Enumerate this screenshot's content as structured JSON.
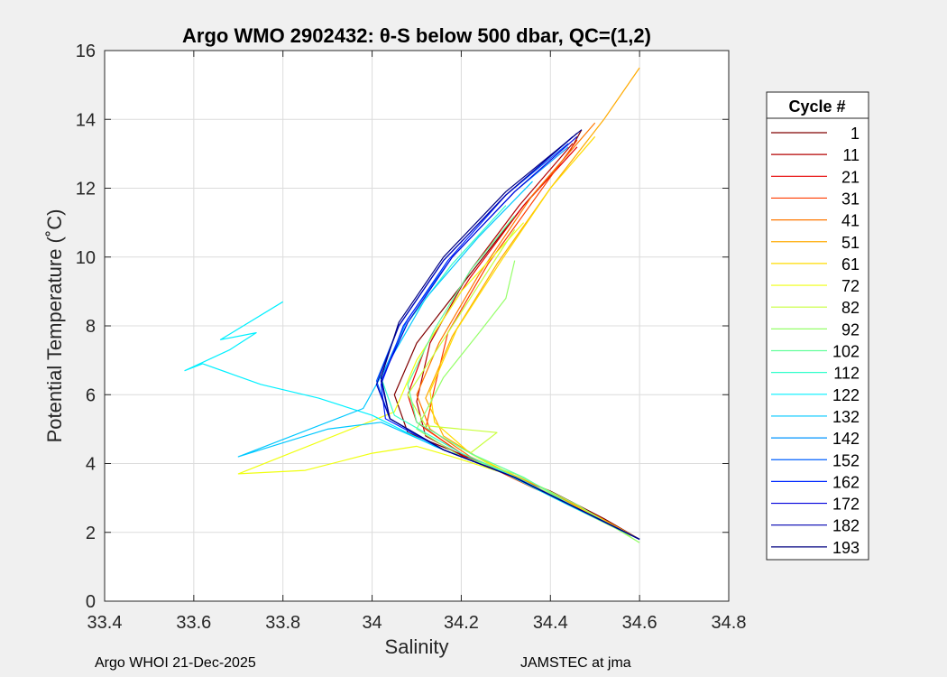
{
  "chart_data": {
    "type": "line",
    "title": "Argo WMO 2902432: θ-S below 500 dbar,  QC=(1,2)",
    "xlabel": "Salinity",
    "ylabel": "Potential Temperature (˚C)",
    "xlim": [
      33.4,
      34.8
    ],
    "ylim": [
      0,
      16
    ],
    "xticks": [
      33.4,
      33.6,
      33.8,
      34,
      34.2,
      34.4,
      34.6,
      34.8
    ],
    "xtick_labels": [
      "33.4",
      "33.6",
      "33.8",
      "34",
      "34.2",
      "34.4",
      "34.6",
      "34.8"
    ],
    "yticks": [
      0,
      2,
      4,
      6,
      8,
      10,
      12,
      14,
      16
    ],
    "ytick_labels": [
      "0",
      "2",
      "4",
      "6",
      "8",
      "10",
      "12",
      "14",
      "16"
    ],
    "grid": true,
    "legend": {
      "title": "Cycle #",
      "placement": "outside-right",
      "entries": [
        "1",
        "11",
        "21",
        "31",
        "41",
        "51",
        "61",
        "72",
        "82",
        "92",
        "102",
        "112",
        "122",
        "132",
        "142",
        "152",
        "162",
        "172",
        "182",
        "193"
      ],
      "colors": [
        "#800000",
        "#b40000",
        "#e60000",
        "#ff3c00",
        "#ff7800",
        "#ffaa00",
        "#ffdc00",
        "#f0ff10",
        "#c8ff3c",
        "#96ff6a",
        "#64ff9c",
        "#32ffcc",
        "#00f0ff",
        "#00c8ff",
        "#0096ff",
        "#0060ff",
        "#0028ff",
        "#0000dc",
        "#0000b0",
        "#000080"
      ]
    },
    "series": [
      {
        "name": "1",
        "x": [
          34.6,
          34.52,
          34.4,
          34.25,
          34.08,
          34.05,
          34.1,
          34.22,
          34.34,
          34.44,
          34.47
        ],
        "y": [
          1.8,
          2.4,
          3.2,
          4.0,
          4.9,
          6.0,
          7.5,
          9.5,
          11.5,
          13.0,
          13.7
        ]
      },
      {
        "name": "11",
        "x": [
          34.6,
          34.5,
          34.38,
          34.22,
          34.12,
          34.1,
          34.13,
          34.22,
          34.33,
          34.45
        ],
        "y": [
          1.8,
          2.5,
          3.3,
          4.1,
          4.8,
          5.8,
          7.5,
          9.6,
          11.5,
          13.3
        ]
      },
      {
        "name": "21",
        "x": [
          34.6,
          34.5,
          34.38,
          34.22,
          34.1,
          34.08,
          34.12,
          34.22,
          34.34,
          34.46
        ],
        "y": [
          1.8,
          2.5,
          3.3,
          4.1,
          5.2,
          6.0,
          7.4,
          9.4,
          11.5,
          13.2
        ]
      },
      {
        "name": "31",
        "x": [
          34.6,
          34.5,
          34.36,
          34.2,
          34.12,
          34.14,
          34.17,
          34.26,
          34.36,
          34.46
        ],
        "y": [
          1.8,
          2.5,
          3.3,
          4.3,
          5.0,
          6.2,
          7.8,
          9.8,
          11.6,
          13.4
        ]
      },
      {
        "name": "41",
        "x": [
          34.6,
          34.5,
          34.37,
          34.22,
          34.13,
          34.1,
          34.15,
          34.24,
          34.36,
          34.5
        ],
        "y": [
          1.8,
          2.5,
          3.3,
          4.2,
          5.0,
          6.0,
          7.5,
          9.5,
          11.8,
          13.9
        ]
      },
      {
        "name": "51",
        "x": [
          34.6,
          34.5,
          34.38,
          34.26,
          34.16,
          34.12,
          34.18,
          34.28,
          34.4,
          34.52,
          34.6
        ],
        "y": [
          1.8,
          2.5,
          3.3,
          4.0,
          4.8,
          5.9,
          7.7,
          9.8,
          12.0,
          14.0,
          15.5
        ]
      },
      {
        "name": "61",
        "x": [
          34.6,
          34.48,
          34.34,
          34.22,
          34.14,
          34.13,
          34.19,
          34.29,
          34.4,
          34.5
        ],
        "y": [
          1.8,
          2.6,
          3.5,
          4.3,
          5.2,
          6.1,
          7.9,
          9.9,
          12.0,
          13.5
        ]
      },
      {
        "name": "72",
        "x": [
          34.58,
          34.44,
          34.3,
          34.18,
          34.1,
          34.0,
          33.85,
          33.7,
          34.05,
          34.1,
          34.2,
          34.34
        ],
        "y": [
          1.9,
          2.8,
          3.7,
          4.2,
          4.5,
          4.3,
          3.8,
          3.7,
          5.5,
          7.0,
          9.0,
          11.0
        ]
      },
      {
        "name": "82",
        "x": [
          34.58,
          34.44,
          34.3,
          34.22,
          34.28,
          34.12,
          34.08,
          34.16,
          34.24,
          34.32
        ],
        "y": [
          1.9,
          2.8,
          3.7,
          4.3,
          4.9,
          5.1,
          6.0,
          7.6,
          9.2,
          10.8
        ]
      },
      {
        "name": "92",
        "x": [
          34.6,
          34.46,
          34.32,
          34.2,
          34.1,
          34.16,
          34.24,
          34.3,
          34.32
        ],
        "y": [
          1.7,
          2.8,
          3.7,
          4.2,
          5.0,
          6.5,
          7.8,
          8.8,
          9.9
        ]
      },
      {
        "name": "102",
        "x": [
          34.6,
          34.46,
          34.34,
          34.22,
          34.1,
          34.08,
          34.14,
          34.22,
          34.32
        ],
        "y": [
          1.8,
          2.7,
          3.6,
          4.3,
          5.2,
          6.3,
          7.9,
          9.6,
          11.2
        ]
      },
      {
        "name": "112",
        "x": [
          34.6,
          34.46,
          34.34,
          34.2,
          34.05,
          34.02,
          34.08,
          34.18,
          34.3
        ],
        "y": [
          1.8,
          2.7,
          3.5,
          4.3,
          5.4,
          6.5,
          8.1,
          9.8,
          11.5
        ]
      },
      {
        "name": "122",
        "x": [
          34.6,
          34.44,
          34.3,
          34.14,
          34.0,
          33.88,
          33.75,
          33.62,
          33.58,
          33.68,
          33.74,
          33.66,
          33.8
        ],
        "y": [
          1.8,
          2.8,
          3.7,
          4.5,
          5.4,
          5.9,
          6.3,
          6.9,
          6.7,
          7.3,
          7.8,
          7.6,
          8.7
        ]
      },
      {
        "name": "132",
        "x": [
          34.6,
          34.44,
          34.3,
          34.16,
          34.02,
          33.9,
          33.8,
          33.7,
          33.98,
          34.04,
          34.12,
          34.24,
          34.36
        ],
        "y": [
          1.8,
          2.8,
          3.7,
          4.4,
          5.2,
          5.0,
          4.6,
          4.2,
          5.6,
          7.0,
          8.8,
          10.6,
          12.2
        ]
      },
      {
        "name": "142",
        "x": [
          34.6,
          34.46,
          34.32,
          34.16,
          34.04,
          34.02,
          34.08,
          34.18,
          34.32,
          34.44
        ],
        "y": [
          1.8,
          2.7,
          3.6,
          4.4,
          5.3,
          6.5,
          8.2,
          10.0,
          11.9,
          13.2
        ]
      },
      {
        "name": "152",
        "x": [
          34.6,
          34.46,
          34.32,
          34.16,
          34.04,
          34.01,
          34.06,
          34.16,
          34.3,
          34.44
        ],
        "y": [
          1.8,
          2.7,
          3.6,
          4.4,
          5.3,
          6.4,
          8.0,
          9.9,
          11.8,
          13.3
        ]
      },
      {
        "name": "162",
        "x": [
          34.6,
          34.46,
          34.32,
          34.16,
          34.03,
          34.02,
          34.07,
          34.17,
          34.3,
          34.45
        ],
        "y": [
          1.8,
          2.7,
          3.6,
          4.4,
          5.3,
          6.3,
          8.0,
          9.9,
          11.8,
          13.5
        ]
      },
      {
        "name": "172",
        "x": [
          34.6,
          34.46,
          34.32,
          34.16,
          34.04,
          34.02,
          34.08,
          34.18,
          34.32,
          34.46
        ],
        "y": [
          1.8,
          2.7,
          3.6,
          4.4,
          5.3,
          6.4,
          8.1,
          10.0,
          11.9,
          13.5
        ]
      },
      {
        "name": "182",
        "x": [
          34.6,
          34.46,
          34.32,
          34.16,
          34.04,
          34.01,
          34.06,
          34.16,
          34.3,
          34.46
        ],
        "y": [
          1.8,
          2.7,
          3.6,
          4.4,
          5.3,
          6.3,
          8.0,
          9.9,
          11.8,
          13.6
        ]
      },
      {
        "name": "193",
        "x": [
          34.6,
          34.46,
          34.32,
          34.16,
          34.04,
          34.02,
          34.06,
          34.16,
          34.3,
          34.47
        ],
        "y": [
          1.8,
          2.7,
          3.6,
          4.4,
          5.3,
          6.5,
          8.1,
          10.0,
          11.9,
          13.7
        ]
      }
    ]
  },
  "footer": {
    "left": "Argo WHOI 21-Dec-2025",
    "right": "JAMSTEC at jma"
  }
}
